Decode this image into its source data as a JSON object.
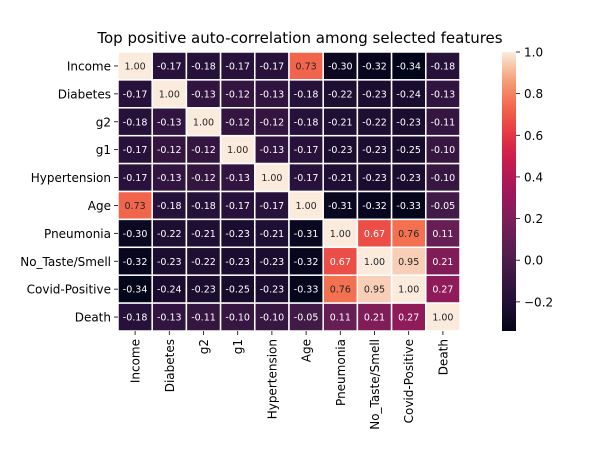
{
  "chart_data": {
    "type": "heatmap",
    "title": "Top positive auto-correlation among selected features",
    "row_labels": [
      "Income",
      "Diabetes",
      "g2",
      "g1",
      "Hypertension",
      "Age",
      "Pneumonia",
      "No_Taste/Smell",
      "Covid-Positive",
      "Death"
    ],
    "col_labels": [
      "Income",
      "Diabetes",
      "g2",
      "g1",
      "Hypertension",
      "Age",
      "Pneumonia",
      "No_Taste/Smell",
      "Covid-Positive",
      "Death"
    ],
    "values": [
      [
        1.0,
        -0.17,
        -0.18,
        -0.17,
        -0.17,
        0.73,
        -0.3,
        -0.32,
        -0.34,
        -0.18
      ],
      [
        -0.17,
        1.0,
        -0.13,
        -0.12,
        -0.13,
        -0.18,
        -0.22,
        -0.23,
        -0.24,
        -0.13
      ],
      [
        -0.18,
        -0.13,
        1.0,
        -0.12,
        -0.12,
        -0.18,
        -0.21,
        -0.22,
        -0.23,
        -0.11
      ],
      [
        -0.17,
        -0.12,
        -0.12,
        1.0,
        -0.13,
        -0.17,
        -0.23,
        -0.23,
        -0.25,
        -0.1
      ],
      [
        -0.17,
        -0.13,
        -0.12,
        -0.13,
        1.0,
        -0.17,
        -0.21,
        -0.23,
        -0.23,
        -0.1
      ],
      [
        0.73,
        -0.18,
        -0.18,
        -0.17,
        -0.17,
        1.0,
        -0.31,
        -0.32,
        -0.33,
        -0.05
      ],
      [
        -0.3,
        -0.22,
        -0.21,
        -0.23,
        -0.21,
        -0.31,
        1.0,
        0.67,
        0.76,
        0.11
      ],
      [
        -0.32,
        -0.23,
        -0.22,
        -0.23,
        -0.23,
        -0.32,
        0.67,
        1.0,
        0.95,
        0.21
      ],
      [
        -0.34,
        -0.24,
        -0.23,
        -0.25,
        -0.23,
        -0.33,
        0.76,
        0.95,
        1.0,
        0.27
      ],
      [
        -0.18,
        -0.13,
        -0.11,
        -0.1,
        -0.1,
        -0.05,
        0.11,
        0.21,
        0.27,
        1.0
      ]
    ],
    "value_format": "2 decimals",
    "colorbar": {
      "range": [
        -0.34,
        1.0
      ],
      "ticks": [
        "1.0",
        "0.8",
        "0.6",
        "0.4",
        "0.2",
        "0.0",
        "−0.2"
      ],
      "tick_values": [
        1.0,
        0.8,
        0.6,
        0.4,
        0.2,
        0.0,
        -0.2
      ],
      "colormap": "rocket",
      "placement": "right"
    },
    "grid_lines_between_cells": true,
    "grid_line_color": "#ffffff"
  }
}
